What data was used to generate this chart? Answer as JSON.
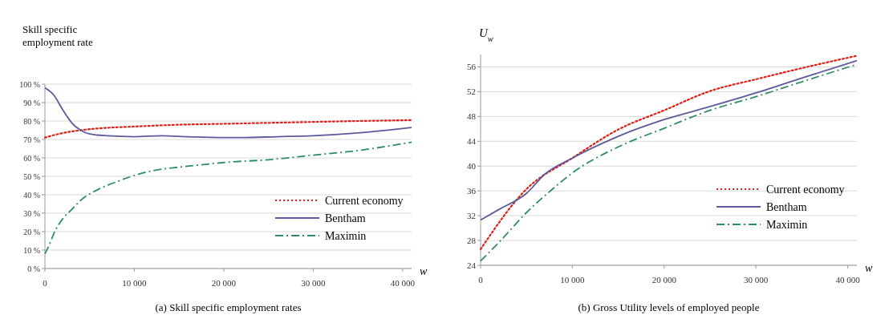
{
  "chart_data": [
    {
      "type": "line",
      "title": "(a) Skill specific employment rates",
      "ylabel": "Skill specific employment rate",
      "xlabel": "w",
      "xlim": [
        0,
        41000
      ],
      "ylim": [
        0,
        100
      ],
      "xticks": [
        0,
        {
          "value": 10000,
          "label": "10 000"
        },
        {
          "value": 20000,
          "label": "20 000"
        },
        {
          "value": 30000,
          "label": "30 000"
        },
        {
          "value": 40000,
          "label": "40 000"
        }
      ],
      "yticks": [
        {
          "value": 0,
          "label": "0 %"
        },
        {
          "value": 10,
          "label": "10 %"
        },
        {
          "value": 20,
          "label": "20 %"
        },
        {
          "value": 30,
          "label": "30 %"
        },
        {
          "value": 40,
          "label": "40 %"
        },
        {
          "value": 50,
          "label": "50 %"
        },
        {
          "value": 60,
          "label": "60 %"
        },
        {
          "value": 70,
          "label": "70 %"
        },
        {
          "value": 80,
          "label": "80 %"
        },
        {
          "value": 90,
          "label": "90 %"
        },
        {
          "value": 100,
          "label": "100 %"
        }
      ],
      "grid": "y",
      "legend": "right",
      "series": [
        {
          "name": "Current economy",
          "color": "#e0201b",
          "line_style": "dotted",
          "x": [
            0,
            2000,
            4000,
            6000,
            10000,
            15000,
            20000,
            25000,
            30000,
            35000,
            41000
          ],
          "values": [
            71,
            73.5,
            75,
            76,
            77,
            78,
            78.5,
            79,
            79.5,
            80,
            80.5
          ]
        },
        {
          "name": "Bentham",
          "color": "#5b5b9b",
          "line_style": "solid",
          "x": [
            0,
            1000,
            2000,
            3000,
            4000,
            5000,
            7000,
            10000,
            13000,
            16000,
            20000,
            22000,
            26000,
            30000,
            35000,
            41000
          ],
          "values": [
            98,
            94,
            86,
            79,
            75,
            73,
            72,
            71.5,
            72,
            71.5,
            71,
            71,
            71.5,
            72,
            73.5,
            76.5
          ]
        },
        {
          "name": "Maximin",
          "color": "#2e8b6a",
          "line_style": "dashdot",
          "x": [
            0,
            500,
            1000,
            2000,
            3000,
            4000,
            6000,
            8000,
            10000,
            12000,
            15000,
            18000,
            20000,
            25000,
            30000,
            35000,
            41000
          ],
          "values": [
            8,
            13,
            19,
            27,
            32,
            37,
            43,
            47,
            50.5,
            53,
            55,
            56.5,
            57.5,
            59,
            61.5,
            64,
            68.5
          ]
        }
      ]
    },
    {
      "type": "line",
      "title": "(b) Gross Utility levels of employed people",
      "ylabel": "U$_{w}$",
      "xlabel": "w",
      "xlim": [
        0,
        41000
      ],
      "ylim": [
        24,
        58
      ],
      "xticks": [
        0,
        {
          "value": 10000,
          "label": "10 000"
        },
        {
          "value": 20000,
          "label": "20 000"
        },
        {
          "value": 30000,
          "label": "30 000"
        },
        {
          "value": 40000,
          "label": "40 000"
        }
      ],
      "yticks": [
        24,
        28,
        32,
        36,
        40,
        44,
        48,
        52,
        56
      ],
      "grid": "y",
      "legend": "bottom right",
      "series": [
        {
          "name": "Current economy",
          "color": "#e0201b",
          "line_style": "dotted",
          "x": [
            0,
            5000,
            10000,
            15000,
            20000,
            25000,
            30000,
            35000,
            41000
          ],
          "values": [
            26.6,
            36.3,
            41.3,
            45.9,
            49,
            52.1,
            54,
            55.8,
            57.8
          ]
        },
        {
          "name": "Bentham",
          "color": "#5b5b9b",
          "line_style": "solid",
          "x": [
            0,
            2000,
            5000,
            7000,
            10000,
            15000,
            20000,
            25000,
            30000,
            35000,
            41000
          ],
          "values": [
            31.3,
            33,
            35.6,
            38.7,
            41.3,
            44.8,
            47.5,
            49.6,
            51.8,
            54.2,
            57
          ]
        },
        {
          "name": "Maximin",
          "color": "#2e8b6a",
          "line_style": "dashdot",
          "x": [
            0,
            2000,
            5000,
            8000,
            10000,
            15000,
            20000,
            25000,
            30000,
            35000,
            41000
          ],
          "values": [
            24.7,
            27.7,
            32.5,
            36.5,
            38.9,
            43.1,
            46.1,
            49,
            51.2,
            53.6,
            56.4
          ]
        }
      ]
    }
  ]
}
